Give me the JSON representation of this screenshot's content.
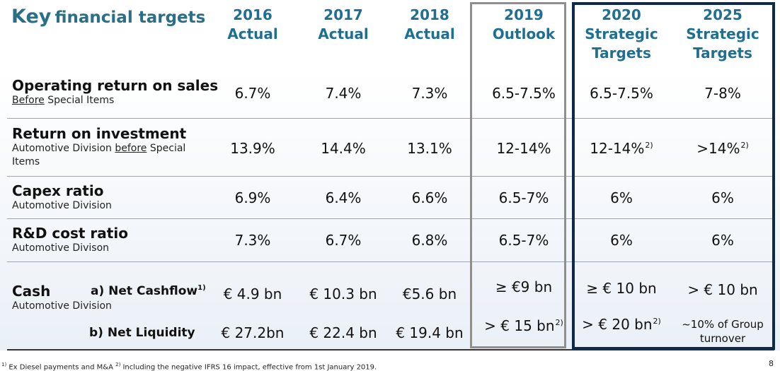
{
  "title": {
    "prefix": "Key",
    "rest": "financial targets"
  },
  "columns": [
    {
      "year": "2016",
      "label": "Actual"
    },
    {
      "year": "2017",
      "label": "Actual"
    },
    {
      "year": "2018",
      "label": "Actual"
    },
    {
      "year": "2019",
      "label": "Outlook"
    },
    {
      "year": "2020",
      "label": "Strategic",
      "label2": "Targets"
    },
    {
      "year": "2025",
      "label": "Strategic",
      "label2": "Targets"
    }
  ],
  "rows": [
    {
      "label": "Operating return on sales",
      "sub_underlined": "Before",
      "sub_rest": " Special Items",
      "values": [
        "6.7%",
        "7.4%",
        "7.3%",
        "6.5-7.5%",
        "6.5-7.5%",
        "7-8%"
      ]
    },
    {
      "label": "Return on investment",
      "sub_pre": "Automotive Division ",
      "sub_underlined": "before",
      "sub_rest": " Special",
      "sub_line2": "Items",
      "values": [
        "13.9%",
        "14.4%",
        "13.1%",
        "12-14%",
        "12-14%",
        ">14%"
      ],
      "value_sups": [
        "",
        "",
        "",
        "",
        "2)",
        "2)"
      ]
    },
    {
      "label": "Capex ratio",
      "sub": "Automotive Division",
      "values": [
        "6.9%",
        "6.4%",
        "6.6%",
        "6.5-7%",
        "6%",
        "6%"
      ]
    },
    {
      "label": "R&D cost ratio",
      "sub": "Automotive Divison",
      "values": [
        "7.3%",
        "6.7%",
        "6.8%",
        "6.5-7%",
        "6%",
        "6%"
      ]
    }
  ],
  "cash": {
    "label": "Cash",
    "sub": "Automotive Division",
    "net_cashflow": {
      "label": "a) Net Cashflow",
      "sup": "1)",
      "values": [
        "€ 4.9 bn",
        "€ 10.3 bn",
        "€5.6 bn",
        "≥ €9 bn",
        "≥ € 10 bn",
        "> € 10 bn"
      ]
    },
    "net_liquidity": {
      "label": "b) Net Liquidity",
      "values": [
        "€ 27.2bn",
        "€ 22.4 bn",
        "€ 19.4 bn",
        "> € 15 bn",
        "> € 20 bn"
      ],
      "value_sups": [
        "",
        "",
        "",
        "2)",
        "2)"
      ],
      "value_2025_line1": "~10% of Group",
      "value_2025_line2": "turnover"
    }
  },
  "footnote": {
    "sup1": "1)",
    "text1": " Ex Diesel payments and M&A ",
    "sup2": "2)",
    "text2": " Including the negative IFRS 16 impact, effective from 1st January 2019."
  },
  "page_number": "8"
}
